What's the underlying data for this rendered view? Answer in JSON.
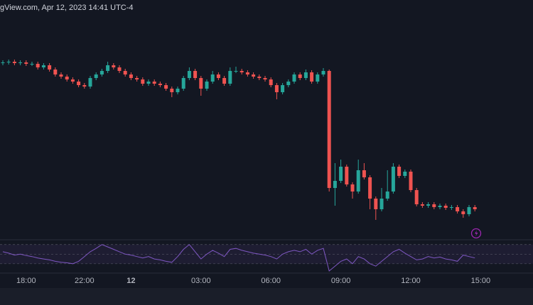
{
  "header": {
    "text": "gView.com, Apr 12, 2023 14:41 UTC-4"
  },
  "chart_data": [
    {
      "type": "candlestick",
      "categories": [
        null,
        null,
        null,
        null,
        "18:00",
        null,
        null,
        null,
        null,
        null,
        null,
        null,
        null,
        null,
        "22:00",
        null,
        null,
        null,
        null,
        null,
        null,
        null,
        "12",
        null,
        null,
        null,
        null,
        null,
        null,
        null,
        null,
        null,
        null,
        null,
        "03:00",
        null,
        null,
        null,
        null,
        null,
        null,
        null,
        null,
        null,
        null,
        null,
        "06:00",
        null,
        null,
        null,
        null,
        null,
        null,
        null,
        null,
        null,
        null,
        null,
        "09:00",
        null,
        null,
        null,
        null,
        null,
        null,
        null,
        null,
        null,
        null,
        null,
        "12:00",
        null,
        null,
        null,
        null,
        null,
        null,
        null,
        null,
        null,
        null,
        null,
        "15:00"
      ],
      "open": [
        251,
        252,
        253,
        251,
        252,
        250,
        250,
        245,
        248,
        242,
        235,
        232,
        228,
        225,
        220,
        218,
        230,
        235,
        240,
        248,
        245,
        240,
        235,
        230,
        228,
        222,
        225,
        222,
        220,
        215,
        210,
        215,
        230,
        240,
        230,
        215,
        225,
        235,
        230,
        222,
        240,
        240,
        238,
        235,
        232,
        230,
        228,
        220,
        210,
        220,
        225,
        235,
        230,
        238,
        225,
        235,
        240,
        75,
        85,
        105,
        80,
        70,
        100,
        90,
        60,
        45,
        60,
        70,
        105,
        92,
        98,
        72,
        52,
        50,
        52,
        48,
        50,
        47,
        48,
        42,
        38,
        48,
        null
      ],
      "high": [
        255,
        256,
        256,
        255,
        255,
        253,
        253,
        251,
        251,
        245,
        238,
        235,
        231,
        228,
        223,
        233,
        238,
        243,
        253,
        251,
        248,
        243,
        238,
        233,
        231,
        228,
        228,
        225,
        223,
        218,
        218,
        233,
        245,
        243,
        233,
        228,
        240,
        238,
        233,
        245,
        246,
        243,
        241,
        238,
        235,
        233,
        231,
        223,
        223,
        228,
        238,
        238,
        242,
        241,
        238,
        244,
        242,
        110,
        115,
        108,
        83,
        115,
        110,
        93,
        63,
        75,
        100,
        110,
        108,
        101,
        101,
        75,
        55,
        55,
        55,
        53,
        53,
        51,
        51,
        45,
        51,
        51,
        null
      ],
      "low": [
        248,
        249,
        248,
        248,
        247,
        247,
        242,
        242,
        239,
        232,
        229,
        225,
        222,
        217,
        215,
        215,
        227,
        232,
        237,
        242,
        237,
        232,
        227,
        225,
        219,
        219,
        219,
        217,
        212,
        203,
        207,
        212,
        227,
        227,
        205,
        212,
        222,
        227,
        219,
        219,
        237,
        235,
        232,
        229,
        227,
        225,
        217,
        200,
        207,
        217,
        222,
        227,
        227,
        222,
        222,
        232,
        70,
        50,
        82,
        77,
        60,
        67,
        87,
        45,
        30,
        42,
        57,
        67,
        89,
        89,
        69,
        49,
        47,
        47,
        45,
        45,
        44,
        44,
        39,
        33,
        35,
        42,
        null
      ],
      "close": [
        252,
        253,
        251,
        252,
        250,
        250,
        245,
        248,
        242,
        235,
        232,
        228,
        225,
        220,
        218,
        230,
        235,
        240,
        248,
        245,
        240,
        235,
        230,
        228,
        222,
        225,
        222,
        220,
        215,
        210,
        215,
        230,
        240,
        230,
        215,
        225,
        235,
        230,
        222,
        240,
        240,
        238,
        235,
        232,
        230,
        228,
        220,
        210,
        220,
        225,
        235,
        230,
        238,
        225,
        235,
        240,
        75,
        85,
        105,
        80,
        70,
        100,
        90,
        60,
        45,
        60,
        70,
        105,
        92,
        98,
        72,
        52,
        50,
        52,
        48,
        50,
        47,
        48,
        42,
        38,
        48,
        45,
        null
      ],
      "up_color": "#26a69a",
      "down_color": "#ef5350",
      "ylim": [
        0,
        340
      ]
    },
    {
      "type": "line",
      "values": [
        55,
        52,
        48,
        50,
        47,
        45,
        42,
        40,
        38,
        35,
        33,
        32,
        30,
        35,
        45,
        55,
        62,
        70,
        65,
        60,
        55,
        50,
        48,
        45,
        42,
        45,
        40,
        38,
        35,
        33,
        45,
        60,
        70,
        55,
        40,
        50,
        58,
        52,
        45,
        60,
        62,
        58,
        55,
        52,
        50,
        48,
        45,
        40,
        50,
        55,
        58,
        55,
        60,
        50,
        58,
        62,
        15,
        25,
        35,
        40,
        30,
        45,
        40,
        30,
        25,
        35,
        45,
        55,
        60,
        52,
        45,
        38,
        40,
        45,
        42,
        44,
        40,
        38,
        35,
        48,
        45,
        42,
        null
      ],
      "color": "#7e57c2",
      "ylim": [
        12,
        80
      ],
      "levels": [
        70,
        50,
        30
      ]
    }
  ]
}
